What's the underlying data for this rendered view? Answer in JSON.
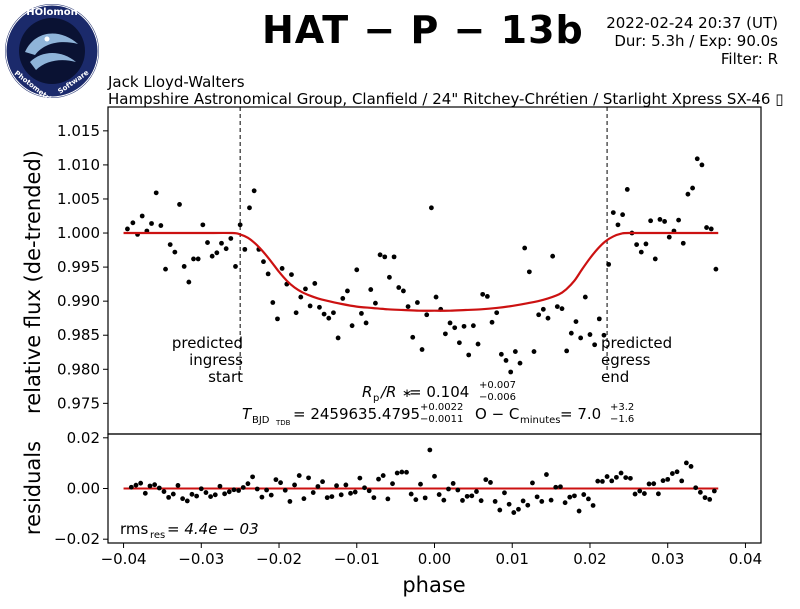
{
  "header": {
    "title": "HAT − P − 13b",
    "date": "2022-02-24 20:37 (UT)",
    "duration_exposure": "Dur: 5.3h / Exp: 90.0s",
    "filter": "Filter: R",
    "observer": "Jack Lloyd-Walters",
    "site": "Hampshire Astronomical Group, Clanfield / 24\" Ritchey-Chrétien / Starlight Xpress SX-46 ▯"
  },
  "logo": {
    "text_top": "HOlomon",
    "text_left": "Photometric",
    "text_right": "Software",
    "colors": {
      "ring": "#1b2a6b",
      "inner": "#0a1233",
      "fish": "#8fb4d9"
    }
  },
  "annotations": {
    "ingress": [
      "predicted",
      "ingress",
      "start"
    ],
    "egress": [
      "predicted",
      "egress",
      "end"
    ],
    "rp_r": {
      "lhs": "R",
      "lhs_sub": "p",
      "slash": "/R",
      "star": "∗",
      "eq": " = 0.104",
      "sup": "+0.007",
      "sub": "−0.006"
    },
    "tbjd": {
      "lhs": "T",
      "lhs_sub": "BJD",
      "lhs_subsub": "TDB",
      "eq": " = 2459635.4795",
      "sup": "+0.0022",
      "sub": "−0.0011"
    },
    "oc": {
      "lhs": "O − C",
      "lhs_sub": "minutes",
      "eq": " = 7.0",
      "sup": "+3.2",
      "sub": "−1.6"
    },
    "rms": {
      "lhs": "rms",
      "lhs_sub": "res",
      "eq": " = 4.4e − 03"
    }
  },
  "chart_data": [
    {
      "type": "scatter",
      "panel": "top",
      "ylabel": "relative flux (de-trended)",
      "xlim": [
        -0.042,
        0.042
      ],
      "ylim": [
        0.9705,
        1.0185
      ],
      "yticks": [
        "0.975",
        "0.980",
        "0.985",
        "0.990",
        "0.995",
        "1.000",
        "1.005",
        "1.010",
        "1.015"
      ],
      "predicted_ingress_phase": -0.025,
      "predicted_egress_phase": 0.0222,
      "model_color": "#cc1111",
      "point_color": "#000000",
      "model": {
        "x": [
          -0.04,
          -0.035,
          -0.03,
          -0.026,
          -0.025,
          -0.024,
          -0.023,
          -0.022,
          -0.021,
          -0.02,
          -0.019,
          -0.018,
          -0.017,
          -0.016,
          -0.015,
          -0.014,
          -0.012,
          -0.01,
          -0.008,
          -0.006,
          -0.004,
          -0.002,
          0.0,
          0.002,
          0.004,
          0.006,
          0.008,
          0.01,
          0.012,
          0.014,
          0.016,
          0.017,
          0.018,
          0.019,
          0.02,
          0.021,
          0.022,
          0.023,
          0.024,
          0.025,
          0.03,
          0.0365
        ],
        "y": [
          1.0,
          1.0,
          1.0,
          1.0,
          0.9998,
          0.9993,
          0.9984,
          0.9972,
          0.9958,
          0.9943,
          0.993,
          0.992,
          0.9913,
          0.9908,
          0.9904,
          0.9901,
          0.9896,
          0.9892,
          0.989,
          0.9888,
          0.9887,
          0.9886,
          0.9886,
          0.9886,
          0.9887,
          0.9888,
          0.989,
          0.9893,
          0.9897,
          0.9902,
          0.991,
          0.9918,
          0.993,
          0.9947,
          0.9963,
          0.9977,
          0.9988,
          0.9995,
          0.9999,
          1.0,
          1.0,
          1.0
        ]
      },
      "points": {
        "x": [
          -0.0395,
          -0.0388,
          -0.0382,
          -0.0376,
          -0.037,
          -0.0364,
          -0.0358,
          -0.0352,
          -0.0346,
          -0.034,
          -0.0334,
          -0.0328,
          -0.0322,
          -0.0316,
          -0.031,
          -0.0304,
          -0.0298,
          -0.0292,
          -0.0286,
          -0.028,
          -0.0274,
          -0.0268,
          -0.0262,
          -0.0256,
          -0.025,
          -0.0244,
          -0.0238,
          -0.0232,
          -0.0226,
          -0.022,
          -0.0214,
          -0.0208,
          -0.0202,
          -0.0196,
          -0.019,
          -0.0184,
          -0.0178,
          -0.0172,
          -0.0166,
          -0.016,
          -0.0154,
          -0.0148,
          -0.0142,
          -0.0136,
          -0.013,
          -0.0124,
          -0.0118,
          -0.0112,
          -0.0106,
          -0.01,
          -0.0094,
          -0.0088,
          -0.0082,
          -0.0076,
          -0.007,
          -0.0064,
          -0.0058,
          -0.0052,
          -0.0046,
          -0.004,
          -0.0034,
          -0.0028,
          -0.0022,
          -0.0016,
          -0.001,
          -0.0004,
          0.0002,
          0.0008,
          0.0014,
          0.002,
          0.0026,
          0.0032,
          0.0038,
          0.0044,
          0.005,
          0.0056,
          0.0062,
          0.0068,
          0.0074,
          0.008,
          0.0086,
          0.0092,
          0.0098,
          0.0104,
          0.011,
          0.0116,
          0.0122,
          0.0128,
          0.0134,
          0.014,
          0.0146,
          0.0152,
          0.0158,
          0.0164,
          0.017,
          0.0176,
          0.0182,
          0.0188,
          0.0194,
          0.02,
          0.0206,
          0.0212,
          0.0218,
          0.0224,
          0.023,
          0.0236,
          0.0242,
          0.0248,
          0.0254,
          0.026,
          0.0266,
          0.0272,
          0.0278,
          0.0284,
          0.029,
          0.0296,
          0.0302,
          0.0308,
          0.0314,
          0.032,
          0.0326,
          0.0332,
          0.0338,
          0.0344,
          0.035,
          0.0356,
          0.0362
        ],
        "y": [
          1.0006,
          1.0015,
          0.9998,
          1.0025,
          1.0003,
          1.0014,
          1.0059,
          1.0011,
          0.9947,
          0.9983,
          0.9972,
          1.0042,
          0.9951,
          0.9928,
          0.9962,
          0.9962,
          1.0012,
          0.9986,
          0.9966,
          0.9971,
          0.9985,
          0.9977,
          0.9992,
          0.9951,
          1.0012,
          0.9976,
          1.0037,
          1.0062,
          0.9976,
          0.9958,
          0.994,
          0.9898,
          0.9874,
          0.9948,
          0.9925,
          0.9939,
          0.9883,
          0.9906,
          0.9918,
          0.9893,
          0.9926,
          0.9891,
          0.9881,
          0.9875,
          0.9883,
          0.9846,
          0.9904,
          0.9915,
          0.9864,
          0.9946,
          0.9882,
          0.9868,
          0.9917,
          0.9897,
          0.9968,
          0.9965,
          0.9935,
          0.9965,
          0.992,
          0.9915,
          0.9892,
          0.9847,
          0.9898,
          0.9829,
          0.988,
          1.0037,
          0.9906,
          0.9888,
          0.9852,
          0.9868,
          0.9861,
          0.9839,
          0.9863,
          0.9821,
          0.9864,
          0.9837,
          0.991,
          0.9907,
          0.9869,
          0.9883,
          0.9822,
          0.9813,
          0.9796,
          0.9826,
          0.9809,
          0.9978,
          0.9943,
          0.9826,
          0.988,
          0.9888,
          0.9875,
          0.9966,
          0.9892,
          0.9889,
          0.9827,
          0.9853,
          0.987,
          0.9846,
          0.9906,
          0.9851,
          0.9836,
          0.9874,
          0.985,
          0.9954,
          1.003,
          1.0012,
          1.0027,
          1.0064,
          1.0,
          0.9983,
          0.9972,
          0.9984,
          1.0018,
          0.9962,
          1.002,
          1.0017,
          0.9994,
          1.0003,
          1.0019,
          0.9985,
          1.0057,
          1.0066,
          1.0109,
          1.01,
          1.0008,
          1.0006,
          0.9947
        ]
      }
    },
    {
      "type": "scatter",
      "panel": "bottom",
      "xlabel": "phase",
      "ylabel": "residuals",
      "xlim": [
        -0.042,
        0.042
      ],
      "ylim": [
        -0.0215,
        0.0215
      ],
      "yticks": [
        "−0.02",
        "0.00",
        "0.02"
      ],
      "xticks": [
        "−0.04",
        "−0.03",
        "−0.02",
        "−0.01",
        "0.00",
        "0.01",
        "0.02",
        "0.03",
        "0.04"
      ],
      "zero_line": 0.0,
      "points": {
        "x": [
          -0.039,
          -0.0384,
          -0.0378,
          -0.0372,
          -0.0366,
          -0.036,
          -0.0354,
          -0.0348,
          -0.0342,
          -0.0336,
          -0.033,
          -0.0324,
          -0.0318,
          -0.0312,
          -0.0306,
          -0.03,
          -0.0294,
          -0.0288,
          -0.0282,
          -0.0276,
          -0.027,
          -0.0264,
          -0.0258,
          -0.0252,
          -0.0246,
          -0.024,
          -0.0234,
          -0.0228,
          -0.0222,
          -0.0216,
          -0.021,
          -0.0204,
          -0.0198,
          -0.0192,
          -0.0186,
          -0.018,
          -0.0174,
          -0.0168,
          -0.0162,
          -0.0156,
          -0.015,
          -0.0144,
          -0.0138,
          -0.0132,
          -0.0126,
          -0.012,
          -0.0114,
          -0.0108,
          -0.0102,
          -0.0096,
          -0.009,
          -0.0084,
          -0.0078,
          -0.0072,
          -0.0066,
          -0.006,
          -0.0054,
          -0.0048,
          -0.0042,
          -0.0036,
          -0.003,
          -0.0024,
          -0.0018,
          -0.0012,
          -0.0006,
          0.0,
          0.0006,
          0.0012,
          0.0018,
          0.0024,
          0.003,
          0.0036,
          0.0042,
          0.0048,
          0.0054,
          0.006,
          0.0066,
          0.0072,
          0.0078,
          0.0084,
          0.009,
          0.0096,
          0.0102,
          0.0108,
          0.0114,
          0.012,
          0.0126,
          0.0132,
          0.0138,
          0.0144,
          0.015,
          0.0156,
          0.0162,
          0.0168,
          0.0174,
          0.018,
          0.0186,
          0.0192,
          0.0198,
          0.0204,
          0.021,
          0.0216,
          0.0222,
          0.0228,
          0.0234,
          0.024,
          0.0246,
          0.0252,
          0.0258,
          0.0264,
          0.027,
          0.0276,
          0.0282,
          0.0288,
          0.0294,
          0.03,
          0.0306,
          0.0312,
          0.0318,
          0.0324,
          0.033,
          0.0336,
          0.0342,
          0.0348,
          0.0354,
          0.036
        ],
        "y": [
          0.0005,
          0.0013,
          0.0021,
          -0.0019,
          0.001,
          0.0015,
          0.0002,
          -0.0012,
          -0.0035,
          -0.0022,
          0.0012,
          -0.004,
          -0.0049,
          -0.0023,
          -0.003,
          -0.0001,
          -0.0016,
          -0.0032,
          -0.0025,
          0.0009,
          -0.0021,
          -0.0013,
          -0.0005,
          -0.0008,
          0.0004,
          0.0019,
          0.0046,
          -0.0002,
          -0.0034,
          -0.0006,
          -0.0026,
          0.0035,
          0.0023,
          -0.0007,
          -0.0051,
          0.0014,
          0.0051,
          -0.004,
          0.0042,
          -0.0016,
          0.0008,
          0.0027,
          -0.0036,
          -0.0032,
          0.0011,
          -0.0025,
          0.0014,
          -0.0019,
          -0.0014,
          0.0041,
          0.0003,
          -0.0009,
          -0.0036,
          0.0037,
          0.0051,
          -0.0041,
          0.0019,
          0.0061,
          0.0065,
          0.0064,
          -0.0022,
          -0.0044,
          0.0017,
          -0.0037,
          0.0152,
          0.0048,
          -0.0024,
          -0.0046,
          -0.0002,
          0.002,
          -0.0006,
          -0.0047,
          -0.0031,
          -0.0029,
          -0.0012,
          -0.0048,
          0.0035,
          0.0024,
          -0.0051,
          -0.0085,
          -0.0017,
          -0.0062,
          -0.0095,
          -0.0082,
          -0.0049,
          -0.0066,
          0.0022,
          -0.0033,
          -0.0051,
          0.0055,
          -0.0046,
          0.0005,
          0.0007,
          -0.0056,
          -0.0034,
          -0.0029,
          -0.0089,
          -0.0024,
          -0.0041,
          -0.0067,
          0.0029,
          0.0028,
          0.0047,
          0.003,
          0.0044,
          0.0061,
          0.0043,
          0.004,
          -0.0022,
          -0.001,
          -0.002,
          0.0018,
          0.0019,
          -0.0021,
          0.0031,
          0.0036,
          0.0059,
          0.0066,
          0.003,
          0.0101,
          0.0087,
          0.0003,
          -0.0015,
          -0.0036,
          -0.0043,
          -0.001
        ]
      }
    }
  ]
}
